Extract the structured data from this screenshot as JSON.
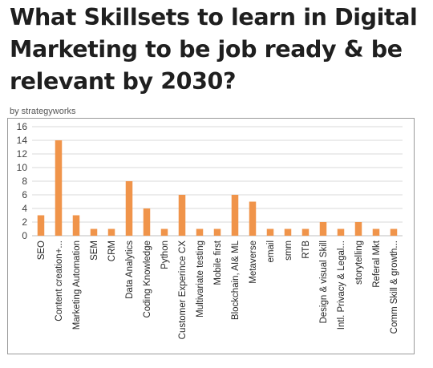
{
  "header": {
    "title": "What Skillsets to learn in Digital Marketing to be job ready & be relevant by 2030?",
    "byline": "by strategyworks"
  },
  "chart_data": {
    "type": "bar",
    "categories": [
      "SEO",
      "Content creation+...",
      "Marketing Automation",
      "SEM",
      "CRM",
      "Data Analytics",
      "Coding Knowledge",
      "Python",
      "Customer Experince CX",
      "Multivariate testing",
      "Mobile first",
      "Blockchain, AI& ML",
      "Metaverse",
      "email",
      "smm",
      "RTB",
      "Design & visual Skill",
      "Intl. Privacy & Legal...",
      "storytelling",
      "Referal Mkt",
      "Comm Skill & growth..."
    ],
    "values": [
      3,
      14,
      3,
      1,
      1,
      8,
      4,
      1,
      6,
      1,
      1,
      6,
      5,
      1,
      1,
      1,
      2,
      1,
      2,
      1,
      1
    ],
    "yticks": [
      0,
      2,
      4,
      6,
      8,
      10,
      12,
      14,
      16
    ],
    "ylim": [
      0,
      16
    ],
    "grid": true,
    "bar_color": "#f0944a",
    "grid_color": "#d9d9d9"
  }
}
